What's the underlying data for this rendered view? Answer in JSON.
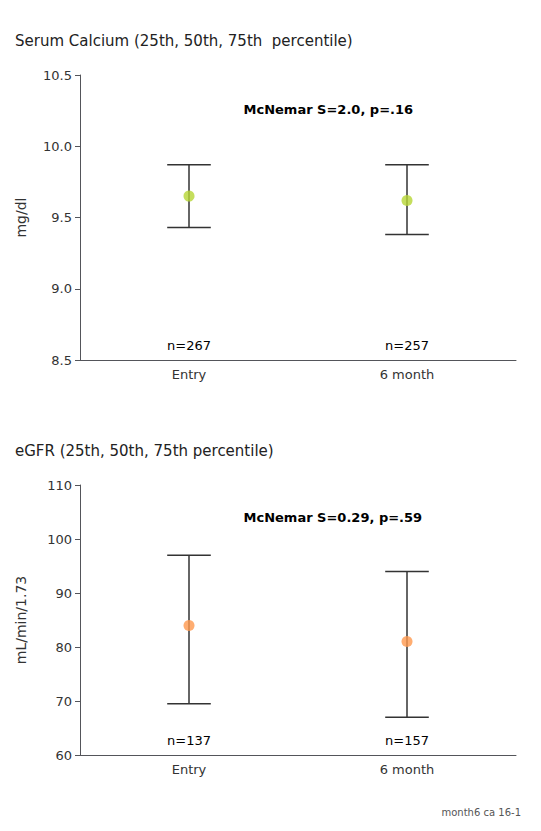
{
  "chart_data": [
    {
      "type": "scatter",
      "title": "Serum Calcium (25th, 50th, 75th  percentile)",
      "ylabel": "mg/dl",
      "annotations": [
        "McNemar S=2.0, p=.16"
      ],
      "categories": [
        "Entry",
        "6 month"
      ],
      "values": [
        9.65,
        9.62
      ],
      "lower": [
        9.43,
        9.38
      ],
      "upper": [
        9.87,
        9.87
      ],
      "n_labels": [
        "n=267",
        "n=257"
      ],
      "ylim": [
        8.5,
        10.5
      ],
      "yticks": [
        8.5,
        {
          "value": 9.0,
          "label": "9.0"
        },
        9.5,
        {
          "value": 10.0,
          "label": "10.0"
        },
        10.5
      ],
      "grid": false
    },
    {
      "type": "scatter",
      "title": "eGFR (25th, 50th, 75th percentile)",
      "ylabel": "mL/min/1.73",
      "annotations": [
        "McNemar S=0.29, p=.59"
      ],
      "categories": [
        "Entry",
        "6 month"
      ],
      "values": [
        84.0,
        81.0
      ],
      "lower": [
        69.5,
        67.0
      ],
      "upper": [
        97.0,
        94.0
      ],
      "n_labels": [
        "n=137",
        "n=157"
      ],
      "ylim": [
        60,
        110
      ],
      "yticks": [
        60,
        70,
        80,
        90,
        100,
        110
      ],
      "grid": false
    }
  ],
  "footnote": "month6 ca 16-1"
}
